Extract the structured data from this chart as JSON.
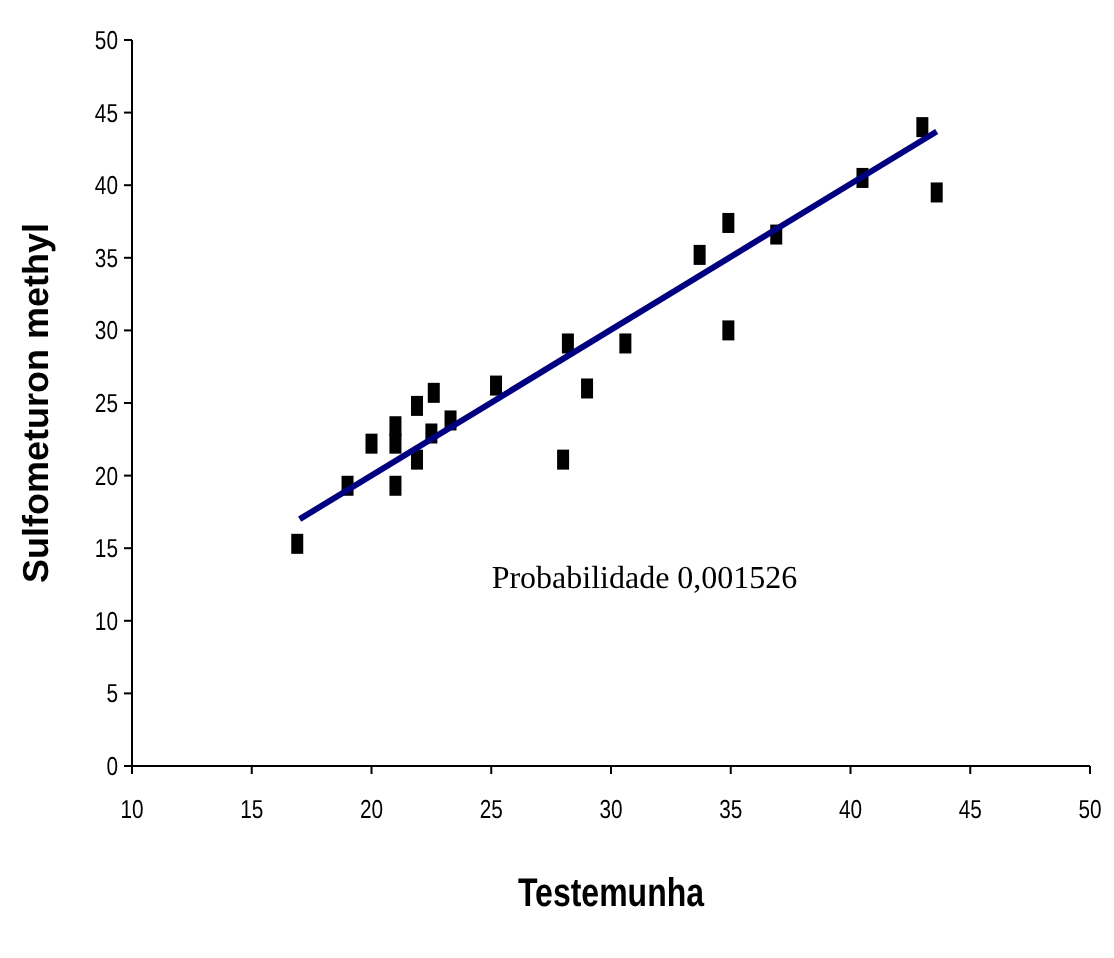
{
  "chart_data": {
    "type": "scatter",
    "xlabel": "Testemunha",
    "ylabel": "Sulfometuron methyl",
    "xlim": [
      10,
      50
    ],
    "xticks": [
      10,
      15,
      20,
      25,
      30,
      35,
      40,
      45,
      50
    ],
    "ylim": [
      0,
      50
    ],
    "yticks": [
      0,
      5,
      10,
      15,
      20,
      25,
      30,
      35,
      40,
      45,
      50
    ],
    "grid": false,
    "marker": "square",
    "annotations": [
      "Probabilidade 0,001526"
    ],
    "series": [
      {
        "color": "#000000",
        "x": [
          16.9,
          19.0,
          20.0,
          21.0,
          21.0,
          21.0,
          21.9,
          21.9,
          22.5,
          22.6,
          23.3,
          25.2,
          28.0,
          28.2,
          29.0,
          30.6,
          33.7,
          34.9,
          34.9,
          36.9,
          40.5,
          43.0,
          43.6
        ],
        "values": [
          15.3,
          19.3,
          22.2,
          23.4,
          22.2,
          19.3,
          24.8,
          21.1,
          22.9,
          25.7,
          23.8,
          26.2,
          21.1,
          29.1,
          26.0,
          29.1,
          35.2,
          30.0,
          37.4,
          36.6,
          40.5,
          44.0,
          39.5
        ]
      },
      {
        "type": "line",
        "color": "#000080",
        "x": [
          17.0,
          43.6
        ],
        "values": [
          17.0,
          43.7
        ],
        "line_style": "solid",
        "marker": "none"
      }
    ]
  }
}
